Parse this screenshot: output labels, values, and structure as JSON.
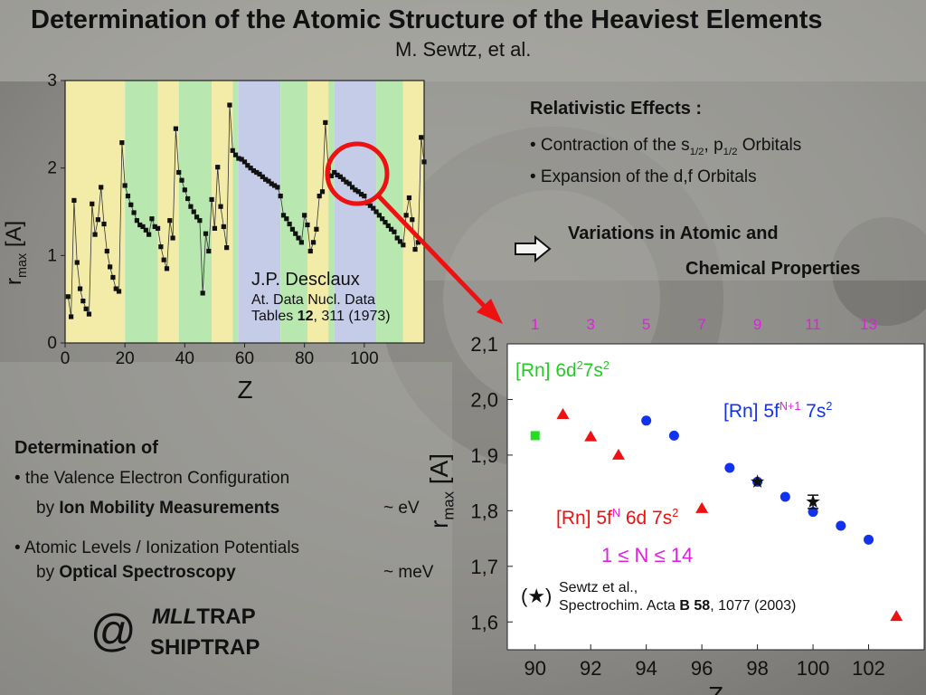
{
  "title": "Determination of the Atomic Structure of the Heaviest Elements",
  "author": "M. Sewtz, et al.",
  "relativistic": {
    "heading": "Relativistic Effects :",
    "bullet1_a": "• Contraction of the s",
    "bullet1_sub1": "1/2",
    "bullet1_b": ", p",
    "bullet1_sub2": "1/2",
    "bullet1_c": " Orbitals",
    "bullet2": "• Expansion of the d,f Orbitals"
  },
  "variations": {
    "arrow_icon": "outline-right-arrow-icon",
    "line1": "Variations in Atomic and",
    "line2": "Chemical Properties"
  },
  "determination": {
    "heading": "Determination of",
    "item1_line1": "• the Valence Electron Configuration",
    "item1_by": "by ",
    "item1_method": "Ion Mobility Measurements",
    "item1_scale": "~ eV",
    "item2_line1": "• Atomic Levels / Ionization Potentials",
    "item2_by": "by ",
    "item2_method": "Optical Spectroscopy",
    "item2_scale": "~ meV"
  },
  "traps": {
    "at": "@",
    "line1_italic": "MLL",
    "line1_rest": "TRAP",
    "line2": "SHIPTRAP"
  },
  "chart_data": [
    {
      "type": "line",
      "xlabel": "Z",
      "ylabel": "r",
      "ylabel_sub": "max",
      "ylabel_unit": "[A]",
      "xlim": [
        0,
        120
      ],
      "ylim": [
        0,
        3
      ],
      "xticks": [
        0,
        20,
        40,
        60,
        80,
        100
      ],
      "yticks": [
        0,
        1,
        2,
        3
      ],
      "background_blocks": [
        {
          "from": 0,
          "to": 20,
          "color": "#f2eca8"
        },
        {
          "from": 20,
          "to": 31,
          "color": "#b8e8b0"
        },
        {
          "from": 31,
          "to": 38,
          "color": "#f2eca8"
        },
        {
          "from": 38,
          "to": 49,
          "color": "#b8e8b0"
        },
        {
          "from": 49,
          "to": 56,
          "color": "#f2eca8"
        },
        {
          "from": 56,
          "to": 58,
          "color": "#b8e8b0"
        },
        {
          "from": 58,
          "to": 72,
          "color": "#c4cce8"
        },
        {
          "from": 72,
          "to": 81,
          "color": "#b8e8b0"
        },
        {
          "from": 81,
          "to": 88,
          "color": "#f2eca8"
        },
        {
          "from": 88,
          "to": 90,
          "color": "#b8e8b0"
        },
        {
          "from": 90,
          "to": 104,
          "color": "#c4cce8"
        },
        {
          "from": 104,
          "to": 113,
          "color": "#b8e8b0"
        },
        {
          "from": 113,
          "to": 120,
          "color": "#f2eca8"
        }
      ],
      "x": [
        1,
        2,
        3,
        4,
        5,
        6,
        7,
        8,
        9,
        10,
        11,
        12,
        13,
        14,
        15,
        16,
        17,
        18,
        19,
        20,
        21,
        22,
        23,
        24,
        25,
        26,
        27,
        28,
        29,
        30,
        31,
        32,
        33,
        34,
        35,
        36,
        37,
        38,
        39,
        40,
        41,
        42,
        43,
        44,
        45,
        46,
        47,
        48,
        49,
        50,
        51,
        52,
        53,
        54,
        55,
        56,
        57,
        58,
        59,
        60,
        61,
        62,
        63,
        64,
        65,
        66,
        67,
        68,
        69,
        70,
        71,
        72,
        73,
        74,
        75,
        76,
        77,
        78,
        79,
        80,
        81,
        82,
        83,
        84,
        85,
        86,
        87,
        88,
        89,
        90,
        91,
        92,
        93,
        94,
        95,
        96,
        97,
        98,
        99,
        100,
        101,
        102,
        103,
        104,
        105,
        106,
        107,
        108,
        109,
        110,
        111,
        112,
        113,
        114,
        115,
        116,
        117,
        118,
        119,
        120
      ],
      "values": [
        0.53,
        0.3,
        1.63,
        0.92,
        0.62,
        0.48,
        0.39,
        0.33,
        1.59,
        1.24,
        1.41,
        1.78,
        1.36,
        1.05,
        0.87,
        0.75,
        0.62,
        0.59,
        2.29,
        1.8,
        1.68,
        1.58,
        1.49,
        1.4,
        1.35,
        1.33,
        1.29,
        1.24,
        1.42,
        1.33,
        1.31,
        1.1,
        0.95,
        0.85,
        1.4,
        1.2,
        2.45,
        1.95,
        1.86,
        1.75,
        1.65,
        1.56,
        1.5,
        1.44,
        1.4,
        0.57,
        1.25,
        1.05,
        1.64,
        1.31,
        2.01,
        1.56,
        1.33,
        1.09,
        2.72,
        2.2,
        2.15,
        2.11,
        2.1,
        2.07,
        2.03,
        2.0,
        1.97,
        1.95,
        1.93,
        1.9,
        1.87,
        1.85,
        1.82,
        1.8,
        1.78,
        1.68,
        1.46,
        1.42,
        1.36,
        1.3,
        1.25,
        1.2,
        1.15,
        1.46,
        1.35,
        1.05,
        1.15,
        1.3,
        1.68,
        1.73,
        2.52,
        2.0,
        1.91,
        1.95,
        1.92,
        1.9,
        1.87,
        1.84,
        1.82,
        1.78,
        1.75,
        1.73,
        1.7,
        1.68,
        1.6,
        1.57,
        1.54,
        1.5,
        1.46,
        1.42,
        1.38,
        1.34,
        1.3,
        1.27,
        1.2,
        1.16,
        1.12,
        1.46,
        1.66,
        1.41,
        1.07,
        1.15,
        2.35,
        2.07
      ]
    },
    {
      "type": "scatter",
      "xlabel": "Z",
      "ylabel": "r",
      "ylabel_sub": "max",
      "ylabel_unit": "[A]",
      "xlim": [
        89,
        104
      ],
      "ylim": [
        1.55,
        2.1
      ],
      "xticks": [
        90,
        92,
        94,
        96,
        98,
        100,
        102
      ],
      "yticks": [
        1.6,
        1.7,
        1.8,
        1.9,
        2.0,
        2.1
      ],
      "ytick_labels": [
        "1,6",
        "1,7",
        "1,8",
        "1,9",
        "2,0",
        "2,1"
      ],
      "top_ticks": [
        {
          "x": 90,
          "label": "1"
        },
        {
          "x": 92,
          "label": "3"
        },
        {
          "x": 94,
          "label": "5"
        },
        {
          "x": 96,
          "label": "7"
        },
        {
          "x": 98,
          "label": "9"
        },
        {
          "x": 100,
          "label": "11"
        },
        {
          "x": 102,
          "label": "13"
        }
      ],
      "series": [
        {
          "name": "[Rn] 6d²7s²",
          "marker": "square",
          "color": "#22dd22",
          "x": [
            90
          ],
          "y": [
            1.935
          ]
        },
        {
          "name": "[Rn] 5f^N 6d 7s²",
          "marker": "triangle",
          "color": "#ee1111",
          "x": [
            91,
            92,
            93,
            96,
            103
          ],
          "y": [
            1.973,
            1.933,
            1.9,
            1.804,
            1.61
          ]
        },
        {
          "name": "[Rn] 5f^N+1 7s²",
          "marker": "circle",
          "color": "#1133ee",
          "x": [
            94,
            95,
            97,
            98,
            99,
            100,
            101,
            102
          ],
          "y": [
            1.962,
            1.935,
            1.877,
            1.852,
            1.825,
            1.798,
            1.773,
            1.748
          ]
        },
        {
          "name": "Sewtz et al.",
          "marker": "star",
          "color": "#111111",
          "x": [
            98,
            100
          ],
          "y": [
            1.852,
            1.816
          ],
          "err": [
            0.0,
            0.012
          ]
        }
      ],
      "labels": {
        "green": [
          "[Rn] 6d",
          "2",
          "7s",
          "2"
        ],
        "blue": [
          "[Rn] 5f",
          "N+1",
          " 7s",
          "2"
        ],
        "red": [
          "[Rn] 5f",
          "N",
          " 6d 7s",
          "2"
        ],
        "range": "1 ≤ N ≤ 14",
        "ref_symbol": "(★)",
        "ref_line1": "Sewtz et al.,",
        "ref_line2_a": "Spectrochim. Acta ",
        "ref_line2_b": "B 58",
        "ref_line2_c": ", 1077 (2003)"
      }
    }
  ],
  "desclaux": {
    "name": "J.P. Desclaux",
    "line2": "At. Data Nucl. Data",
    "line3_a": "Tables ",
    "line3_b": "12",
    "line3_c": ", 311 (1973)"
  },
  "colors": {
    "highlight": "#ee1111",
    "ring": "#ee1111"
  }
}
